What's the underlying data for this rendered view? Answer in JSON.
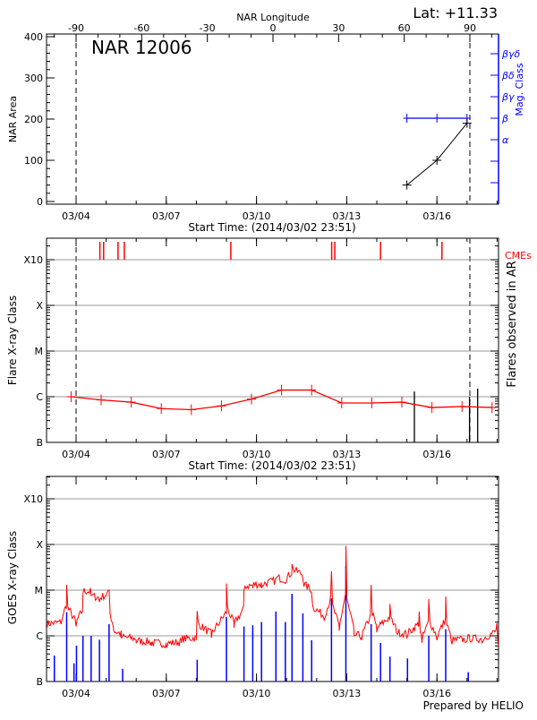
{
  "header": {
    "latitude_label": "Lat: +11.33",
    "top_axis_title": "NAR Longitude",
    "region_title": "NAR 12006",
    "footer": "Prepared by HELIO"
  },
  "colors": {
    "area": "#000000",
    "mag_class": "#0000ff",
    "flare": "#ff0000",
    "cme": "#ff0000",
    "goes_long": "#ff0000",
    "goes_short": "#0000ff",
    "grid": "#999999"
  },
  "chart_data": [
    {
      "type": "line",
      "panel": "area",
      "top_xlabel": "NAR Longitude",
      "top_xticks": [
        "-90",
        "-60",
        "-30",
        "0",
        "30",
        "60",
        "90"
      ],
      "top_xtick_values": [
        -90,
        -60,
        -30,
        0,
        30,
        60,
        90
      ],
      "xlabel": "Start Time: (2014/03/02 23:51)",
      "xticks": [
        "03/04",
        "03/07",
        "03/10",
        "03/13",
        "03/16"
      ],
      "xtick_dates": [
        "2014-03-04T00:00",
        "2014-03-07T00:00",
        "2014-03-10T00:00",
        "2014-03-13T00:00",
        "2014-03-16T00:00"
      ],
      "xlim": [
        "2014-03-03T00:00",
        "2014-03-18T01:00"
      ],
      "ylabel": "NAR Area",
      "ylim": [
        0,
        400
      ],
      "yticks": [
        "0",
        "100",
        "200",
        "300",
        "400"
      ],
      "limb_longitudes": [
        -90,
        90
      ],
      "series": [
        {
          "x": [
            "2014-03-15T00:00",
            "2014-03-16T00:00",
            "2014-03-17T00:00"
          ],
          "values": [
            40,
            100,
            190
          ]
        }
      ],
      "right_axis": {
        "label": "Mag. Class",
        "classes": [
          "",
          "",
          "α",
          "β",
          "βγ",
          "βδ",
          "βγδ"
        ],
        "series": {
          "x": [
            "2014-03-15T00:00",
            "2014-03-16T00:00",
            "2014-03-17T00:00"
          ],
          "values": [
            "β",
            "β",
            "β"
          ]
        }
      }
    },
    {
      "type": "line",
      "panel": "flares",
      "xlabel": "Start Time: (2014/03/02 23:51)",
      "xticks": [
        "03/04",
        "03/07",
        "03/10",
        "03/13",
        "03/16"
      ],
      "ylabel": "Flare X-ray Class",
      "yticks": [
        "B",
        "C",
        "M",
        "X",
        "X10"
      ],
      "ylim_flux": [
        1e-07,
        0.003
      ],
      "yscale": "log",
      "right_label": "Flares observed in AR",
      "cme_label": "CMEs",
      "cmes": [
        "2014-03-04T19:00",
        "2014-03-04T22:00",
        "2014-03-05T09:30",
        "2014-03-05T14:30",
        "2014-03-09T03:30",
        "2014-03-12T12:00",
        "2014-03-12T14:30",
        "2014-03-14T03:00",
        "2014-03-16T04:00"
      ],
      "series": [
        {
          "x": [
            "2014-03-03T20:00",
            "2014-03-04T20:00",
            "2014-03-05T20:00",
            "2014-03-06T20:00",
            "2014-03-07T20:00",
            "2014-03-08T20:00",
            "2014-03-09T20:00",
            "2014-03-10T20:00",
            "2014-03-11T20:00",
            "2014-03-12T20:00",
            "2014-03-13T20:00",
            "2014-03-14T20:00",
            "2014-03-15T20:00",
            "2014-03-16T20:00",
            "2014-03-17T20:00"
          ],
          "values": [
            1e-06,
            8.5e-07,
            7.6e-07,
            5.5e-07,
            5.2e-07,
            6.3e-07,
            8.9e-07,
            1.4e-06,
            1.4e-06,
            7.3e-07,
            7.3e-07,
            7.6e-07,
            5.8e-07,
            6.1e-07,
            5.8e-07
          ]
        }
      ],
      "ar_flares": [
        {
          "x": "2014-03-15T06:00",
          "value": 1.3e-06
        },
        {
          "x": "2014-03-17T02:00",
          "value": 1e-06
        },
        {
          "x": "2014-03-17T08:30",
          "value": 1.5e-06
        }
      ]
    },
    {
      "type": "line",
      "panel": "goes",
      "xticks": [
        "03/04",
        "03/07",
        "03/10",
        "03/13",
        "03/16"
      ],
      "ylabel": "GOES X-ray Class",
      "yticks": [
        "B",
        "C",
        "M",
        "X",
        "X10"
      ],
      "ylim_flux": [
        1e-07,
        0.003
      ],
      "yscale": "log",
      "long_channel": {
        "x": [
          "2014-03-03T00:00",
          "2014-03-03T12:00",
          "2014-03-03T16:30",
          "2014-03-04T00:00",
          "2014-03-04T05:30",
          "2014-03-04T12:00",
          "2014-03-04T18:40",
          "2014-03-05T02:20",
          "2014-03-05T06:00",
          "2014-03-05T12:00",
          "2014-03-06T00:00",
          "2014-03-06T12:00",
          "2014-03-07T00:00",
          "2014-03-07T12:00",
          "2014-03-08T00:00",
          "2014-03-08T00:40",
          "2014-03-08T12:00",
          "2014-03-09T00:00",
          "2014-03-09T06:00",
          "2014-03-09T14:00",
          "2014-03-09T21:00",
          "2014-03-10T04:00",
          "2014-03-10T15:30",
          "2014-03-10T23:00",
          "2014-03-11T04:20",
          "2014-03-11T13:00",
          "2014-03-11T20:00",
          "2014-03-12T06:00",
          "2014-03-12T11:50",
          "2014-03-12T18:00",
          "2014-03-12T23:20",
          "2014-03-13T06:00",
          "2014-03-13T12:00",
          "2014-03-13T19:30",
          "2014-03-14T00:00",
          "2014-03-14T10:30",
          "2014-03-14T16:00",
          "2014-03-15T00:00",
          "2014-03-15T09:50",
          "2014-03-15T12:00",
          "2014-03-15T17:30",
          "2014-03-16T00:00",
          "2014-03-16T07:00",
          "2014-03-16T12:00",
          "2014-03-17T00:00",
          "2014-03-17T12:00",
          "2014-03-17T23:45",
          "2014-03-18T01:00"
        ],
        "values": [
          1.5e-06,
          1.8e-06,
          1.3e-05,
          1.6e-06,
          8.3e-06,
          7.6e-06,
          5.5e-06,
          1e-05,
          1.3e-06,
          9e-07,
          7e-07,
          6e-07,
          5.5e-07,
          7e-07,
          8e-07,
          3.5e-06,
          9e-07,
          1.4e-05,
          1.5e-06,
          1e-05,
          1.1e-05,
          1.1e-05,
          1.8e-05,
          1.4e-05,
          3.7e-05,
          1.8e-05,
          8.3e-06,
          2.2e-06,
          2.6e-05,
          1.3e-06,
          9.3e-05,
          1e-06,
          8e-07,
          1.3e-05,
          1.2e-06,
          5e-06,
          1.1e-06,
          9e-07,
          3.4e-06,
          7e-07,
          6.4e-06,
          8e-07,
          7.3e-06,
          6.5e-07,
          7.5e-07,
          7e-07,
          1.9e-06,
          6e-07
        ]
      },
      "short_channel": {
        "x": [
          "2014-03-03T06:40",
          "2014-03-03T16:30",
          "2014-03-03T22:20",
          "2014-03-04T00:20",
          "2014-03-04T05:30",
          "2014-03-04T12:00",
          "2014-03-04T18:40",
          "2014-03-05T02:20",
          "2014-03-05T13:10",
          "2014-03-08T00:40",
          "2014-03-09T00:00",
          "2014-03-09T14:00",
          "2014-03-09T21:00",
          "2014-03-10T04:00",
          "2014-03-10T15:30",
          "2014-03-10T23:00",
          "2014-03-11T04:20",
          "2014-03-11T13:00",
          "2014-03-11T20:00",
          "2014-03-12T11:50",
          "2014-03-12T23:20",
          "2014-03-13T19:30",
          "2014-03-14T03:00",
          "2014-03-14T10:30",
          "2014-03-15T00:30",
          "2014-03-15T17:30",
          "2014-03-16T07:00",
          "2014-03-17T01:00"
        ],
        "values": [
          3.7e-07,
          3.3e-06,
          2.5e-07,
          6.1e-07,
          1e-06,
          1e-06,
          8.2e-07,
          1.8e-06,
          1.9e-07,
          3e-07,
          2.6e-06,
          1.6e-06,
          1.7e-06,
          2e-06,
          3.4e-06,
          2e-06,
          8.3e-06,
          3.1e-06,
          8e-07,
          6.6e-06,
          3.4e-05,
          1.8e-06,
          7e-07,
          3.5e-07,
          3.2e-07,
          1e-06,
          1.4e-06,
          1.6e-07
        ]
      }
    }
  ]
}
